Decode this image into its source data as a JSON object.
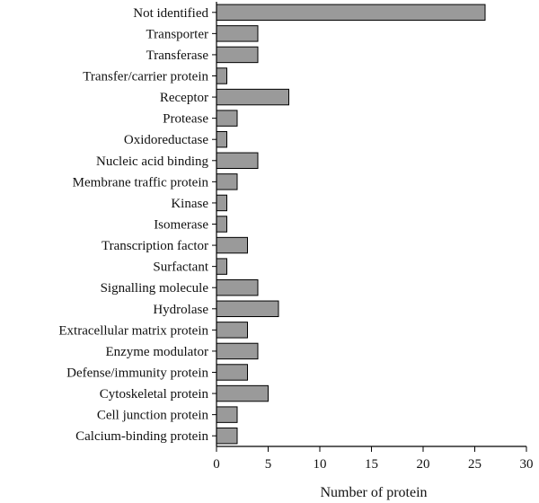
{
  "chart_data": {
    "type": "bar",
    "orientation": "horizontal",
    "categories": [
      "Not identified",
      "Transporter",
      "Transferase",
      "Transfer/carrier protein",
      "Receptor",
      "Protease",
      "Oxidoreductase",
      "Nucleic acid binding",
      "Membrane traffic protein",
      "Kinase",
      "Isomerase",
      "Transcription factor",
      "Surfactant",
      "Signalling molecule",
      "Hydrolase",
      "Extracellular matrix protein",
      "Enzyme modulator",
      "Defense/immunity protein",
      "Cytoskeletal protein",
      "Cell junction protein",
      "Calcium-binding protein"
    ],
    "values": [
      26,
      4,
      4,
      1,
      7,
      2,
      1,
      4,
      2,
      1,
      1,
      3,
      1,
      4,
      6,
      3,
      4,
      3,
      5,
      2,
      2
    ],
    "xlabel": "Number of protein",
    "ylabel": "",
    "xlim": [
      0,
      30
    ],
    "xticks": [
      0,
      5,
      10,
      15,
      20,
      25,
      30
    ],
    "grid": false,
    "legend": "none",
    "colors": {
      "bar_fill": "#9a9a9a",
      "bar_stroke": "#000000",
      "axis": "#000000",
      "text": "#111111"
    }
  }
}
